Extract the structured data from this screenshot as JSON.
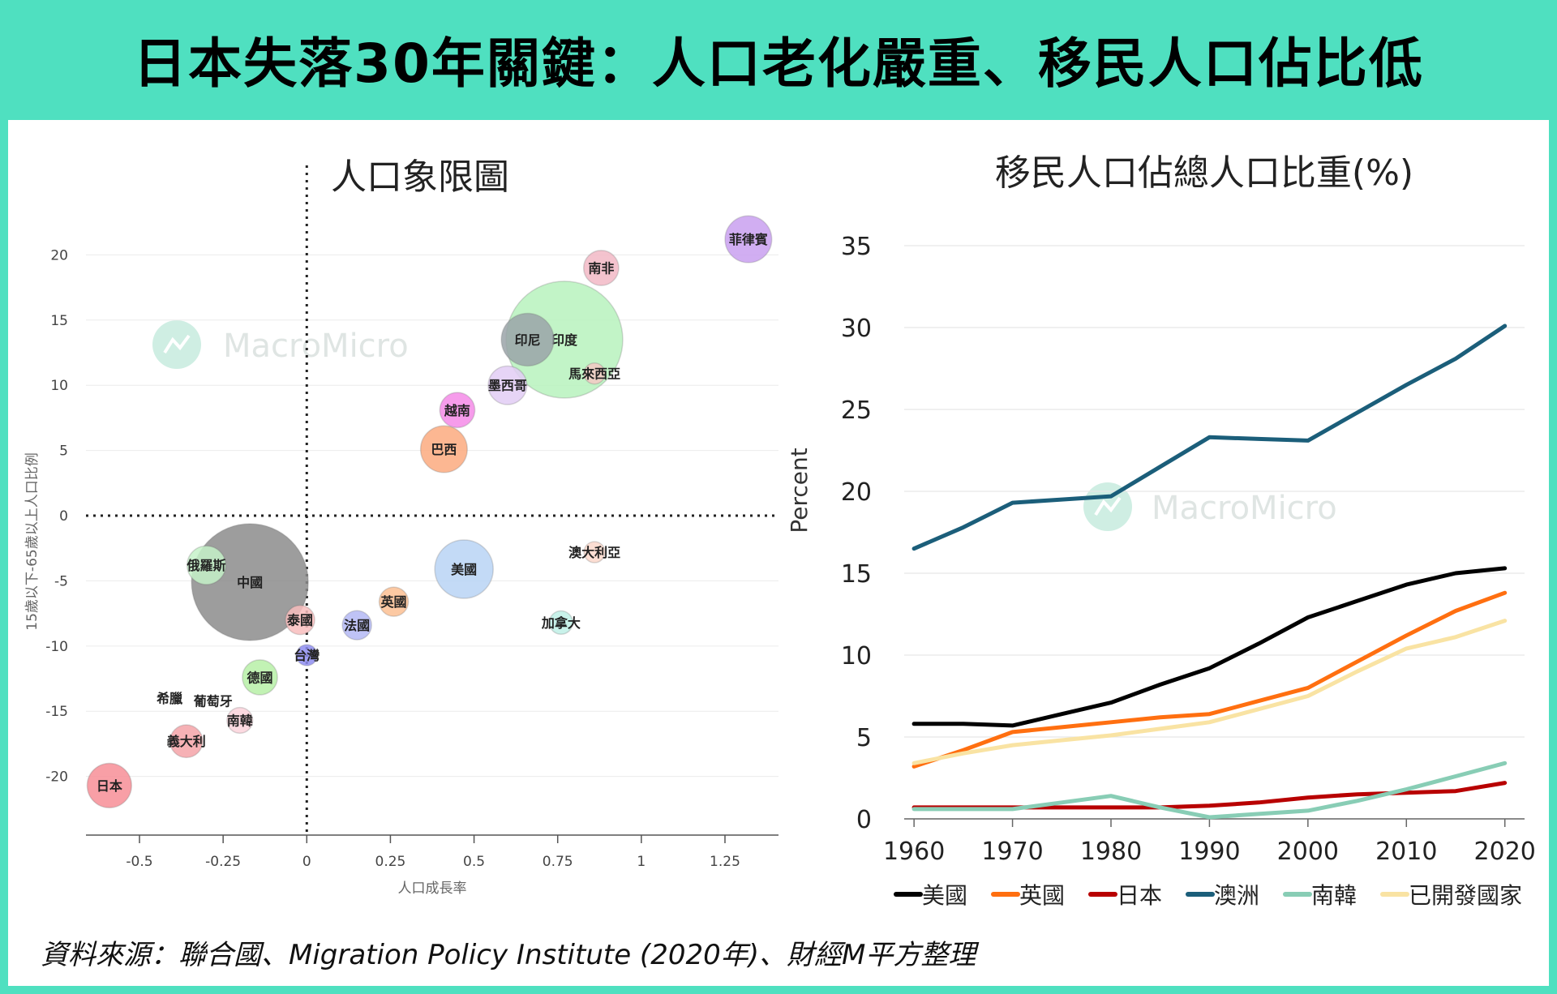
{
  "title": "日本失落30年關鍵：人口老化嚴重、移民人口佔比低",
  "source": "資料來源：聯合國、Migration Policy Institute (2020年)、財經M平方整理",
  "watermark": "MacroMicro",
  "chart_data": [
    {
      "type": "scatter",
      "title": "人口象限圖",
      "xlabel": "人口成長率",
      "ylabel": "15歲以下-65歲以上人口比例",
      "xlim": [
        -0.66,
        1.41
      ],
      "ylim": [
        -24.5,
        25
      ],
      "xticks": [
        -0.5,
        -0.25,
        0,
        0.25,
        0.5,
        0.75,
        1,
        1.25
      ],
      "xtick_labels": [
        "-0.5",
        "-0.25",
        "0",
        "0.25",
        "0.5",
        "0.75",
        "1",
        "1.25"
      ],
      "yticks": [
        -20,
        -15,
        -10,
        -5,
        0,
        5,
        10,
        15,
        20
      ],
      "ytick_labels": [
        "-20",
        "-15",
        "-10",
        "-5",
        "0",
        "5",
        "10",
        "15",
        "20"
      ],
      "points": [
        {
          "label": "菲律賓",
          "x": 1.32,
          "y": 21.2,
          "size": 0.4,
          "color": "#c9a0f0"
        },
        {
          "label": "南非",
          "x": 0.88,
          "y": 19.0,
          "size": 0.3,
          "color": "#f2b8c6"
        },
        {
          "label": "印度",
          "x": 0.77,
          "y": 13.5,
          "size": 1.0,
          "color": "#b7f2bd"
        },
        {
          "label": "印尼",
          "x": 0.66,
          "y": 13.5,
          "size": 0.45,
          "color": "#9aa3a8"
        },
        {
          "label": "馬來西亞",
          "x": 0.86,
          "y": 10.9,
          "size": 0.18,
          "color": "#f4c9c4"
        },
        {
          "label": "墨西哥",
          "x": 0.6,
          "y": 10.0,
          "size": 0.33,
          "color": "#e2cdf5"
        },
        {
          "label": "越南",
          "x": 0.45,
          "y": 8.1,
          "size": 0.3,
          "color": "#f58be8"
        },
        {
          "label": "巴西",
          "x": 0.41,
          "y": 5.1,
          "size": 0.4,
          "color": "#fbaa7f"
        },
        {
          "label": "澳大利亞",
          "x": 0.86,
          "y": -2.8,
          "size": 0.18,
          "color": "#fbd8cb"
        },
        {
          "label": "美國",
          "x": 0.47,
          "y": -4.1,
          "size": 0.5,
          "color": "#b9d4f4"
        },
        {
          "label": "英國",
          "x": 0.26,
          "y": -6.6,
          "size": 0.25,
          "color": "#fbbf93"
        },
        {
          "label": "加拿大",
          "x": 0.76,
          "y": -8.2,
          "size": 0.2,
          "color": "#bff0e6"
        },
        {
          "label": "法國",
          "x": 0.15,
          "y": -8.4,
          "size": 0.25,
          "color": "#b4b8f4"
        },
        {
          "label": "泰國",
          "x": -0.02,
          "y": -8.0,
          "size": 0.25,
          "color": "#f8bdbd"
        },
        {
          "label": "台灣",
          "x": 0.0,
          "y": -10.7,
          "size": 0.18,
          "color": "#8f8ef0"
        },
        {
          "label": "中國",
          "x": -0.17,
          "y": -5.1,
          "size": 1.0,
          "color": "#8c8c8c"
        },
        {
          "label": "俄羅斯",
          "x": -0.3,
          "y": -3.8,
          "size": 0.33,
          "color": "#c6f2c9"
        },
        {
          "label": "德國",
          "x": -0.14,
          "y": -12.4,
          "size": 0.3,
          "color": "#b7f0a7"
        },
        {
          "label": "義大利",
          "x": -0.36,
          "y": -17.3,
          "size": 0.28,
          "color": "#f5a3a8"
        },
        {
          "label": "希臘",
          "x": -0.41,
          "y": -14.0,
          "size": 0.08,
          "color": "#ffffff"
        },
        {
          "label": "葡萄牙",
          "x": -0.28,
          "y": -14.2,
          "size": 0.08,
          "color": "#ffffff"
        },
        {
          "label": "南韓",
          "x": -0.2,
          "y": -15.7,
          "size": 0.22,
          "color": "#fbd3dc"
        },
        {
          "label": "日本",
          "x": -0.59,
          "y": -20.7,
          "size": 0.38,
          "color": "#f78e97"
        }
      ]
    },
    {
      "type": "line",
      "title": "移民人口佔總人口比重(%)",
      "ylabel": "Percent",
      "xlim": [
        1959,
        2022
      ],
      "ylim": [
        0,
        35
      ],
      "xticks": [
        1960,
        1970,
        1980,
        1990,
        2000,
        2010,
        2020
      ],
      "xtick_labels": [
        "1960",
        "1970",
        "1980",
        "1990",
        "2000",
        "2010",
        "2020"
      ],
      "yticks": [
        0,
        5,
        10,
        15,
        20,
        25,
        30,
        35
      ],
      "ytick_labels": [
        "0",
        "5",
        "10",
        "15",
        "20",
        "25",
        "30",
        "35"
      ],
      "series": [
        {
          "name": "美國",
          "color": "#000000",
          "x": [
            1960,
            1965,
            1970,
            1975,
            1980,
            1985,
            1990,
            1995,
            2000,
            2005,
            2010,
            2015,
            2020
          ],
          "values": [
            5.8,
            5.8,
            5.7,
            6.4,
            7.1,
            8.2,
            9.2,
            10.7,
            12.3,
            13.3,
            14.3,
            15.0,
            15.3
          ]
        },
        {
          "name": "英國",
          "color": "#ff6f10",
          "x": [
            1960,
            1965,
            1970,
            1975,
            1980,
            1985,
            1990,
            1995,
            2000,
            2005,
            2010,
            2015,
            2020
          ],
          "values": [
            3.2,
            4.2,
            5.3,
            5.6,
            5.9,
            6.2,
            6.4,
            7.2,
            8.0,
            9.6,
            11.2,
            12.7,
            13.8
          ]
        },
        {
          "name": "日本",
          "color": "#b80000",
          "x": [
            1960,
            1965,
            1970,
            1975,
            1980,
            1985,
            1990,
            1995,
            2000,
            2005,
            2010,
            2015,
            2020
          ],
          "values": [
            0.7,
            0.7,
            0.7,
            0.7,
            0.7,
            0.7,
            0.8,
            1.0,
            1.3,
            1.5,
            1.6,
            1.7,
            2.2
          ]
        },
        {
          "name": "澳洲",
          "color": "#1b5e7a",
          "x": [
            1960,
            1965,
            1970,
            1975,
            1980,
            1985,
            1990,
            1995,
            2000,
            2005,
            2010,
            2015,
            2020
          ],
          "values": [
            16.5,
            17.8,
            19.3,
            19.5,
            19.7,
            21.5,
            23.3,
            23.2,
            23.1,
            24.8,
            26.5,
            28.1,
            30.1
          ]
        },
        {
          "name": "南韓",
          "color": "#88cdb5",
          "x": [
            1960,
            1965,
            1970,
            1975,
            1980,
            1985,
            1990,
            1995,
            2000,
            2005,
            2010,
            2015,
            2020
          ],
          "values": [
            0.6,
            0.6,
            0.6,
            1.0,
            1.4,
            0.7,
            0.1,
            0.3,
            0.5,
            1.1,
            1.8,
            2.6,
            3.4
          ]
        },
        {
          "name": "已開發國家",
          "color": "#f9e3a3",
          "x": [
            1960,
            1965,
            1970,
            1975,
            1980,
            1985,
            1990,
            1995,
            2000,
            2005,
            2010,
            2015,
            2020
          ],
          "values": [
            3.4,
            4.0,
            4.5,
            4.8,
            5.1,
            5.5,
            5.9,
            6.7,
            7.5,
            9.0,
            10.4,
            11.1,
            12.1
          ]
        }
      ]
    }
  ]
}
